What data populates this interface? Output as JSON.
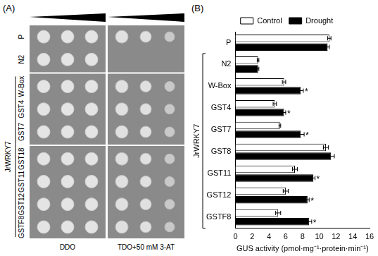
{
  "panel_a": {
    "label": "(A)",
    "group_label": "JrWRKY7",
    "columns": [
      "DDO",
      "TDO+50 mM 3-AT"
    ],
    "row_groups": [
      [
        {
          "label": "P",
          "tdo_growth": true
        },
        {
          "label": "N2",
          "tdo_growth": false
        }
      ],
      [
        {
          "label": "W-Box",
          "tdo_growth": true
        },
        {
          "label": "GST4",
          "tdo_growth": true
        },
        {
          "label": "GST7",
          "tdo_growth": true
        }
      ],
      [
        {
          "label": "GST18",
          "tdo_growth": true
        },
        {
          "label": "GST11",
          "tdo_growth": true
        },
        {
          "label": "GST12",
          "tdo_growth": true
        },
        {
          "label": "GSTF8",
          "tdo_growth": true
        }
      ]
    ]
  },
  "chart_data": {
    "type": "bar",
    "panel_label": "(B)",
    "orientation": "horizontal",
    "group_label": "JrWRKY7",
    "categories": [
      "P",
      "N2",
      "W-Box",
      "GST4",
      "GST7",
      "GST8",
      "GST11",
      "GST12",
      "GSTF8"
    ],
    "series": [
      {
        "name": "Control",
        "color": "#ffffff",
        "values": [
          11.2,
          2.7,
          5.8,
          4.7,
          5.3,
          10.8,
          7.1,
          6.0,
          5.1
        ],
        "errors": [
          0.2,
          0.1,
          0.2,
          0.2,
          0.1,
          0.3,
          0.3,
          0.3,
          0.3
        ]
      },
      {
        "name": "Drought",
        "color": "#000000",
        "values": [
          11.0,
          2.7,
          7.8,
          5.8,
          7.8,
          11.4,
          9.3,
          8.6,
          8.8
        ],
        "errors": [
          0.2,
          0.1,
          0.3,
          0.2,
          0.4,
          0.4,
          0.2,
          0.2,
          0.3
        ],
        "significance": [
          null,
          null,
          "*",
          "*",
          "*",
          null,
          "*",
          "*",
          "*"
        ]
      }
    ],
    "x_label": "GUS activity (pmol·mg⁻¹·protein·min⁻¹)",
    "xlim": [
      0,
      16
    ],
    "xticks": [
      0,
      2,
      4,
      6,
      8,
      10,
      12,
      14,
      16
    ],
    "legend": "top",
    "grid": false
  }
}
